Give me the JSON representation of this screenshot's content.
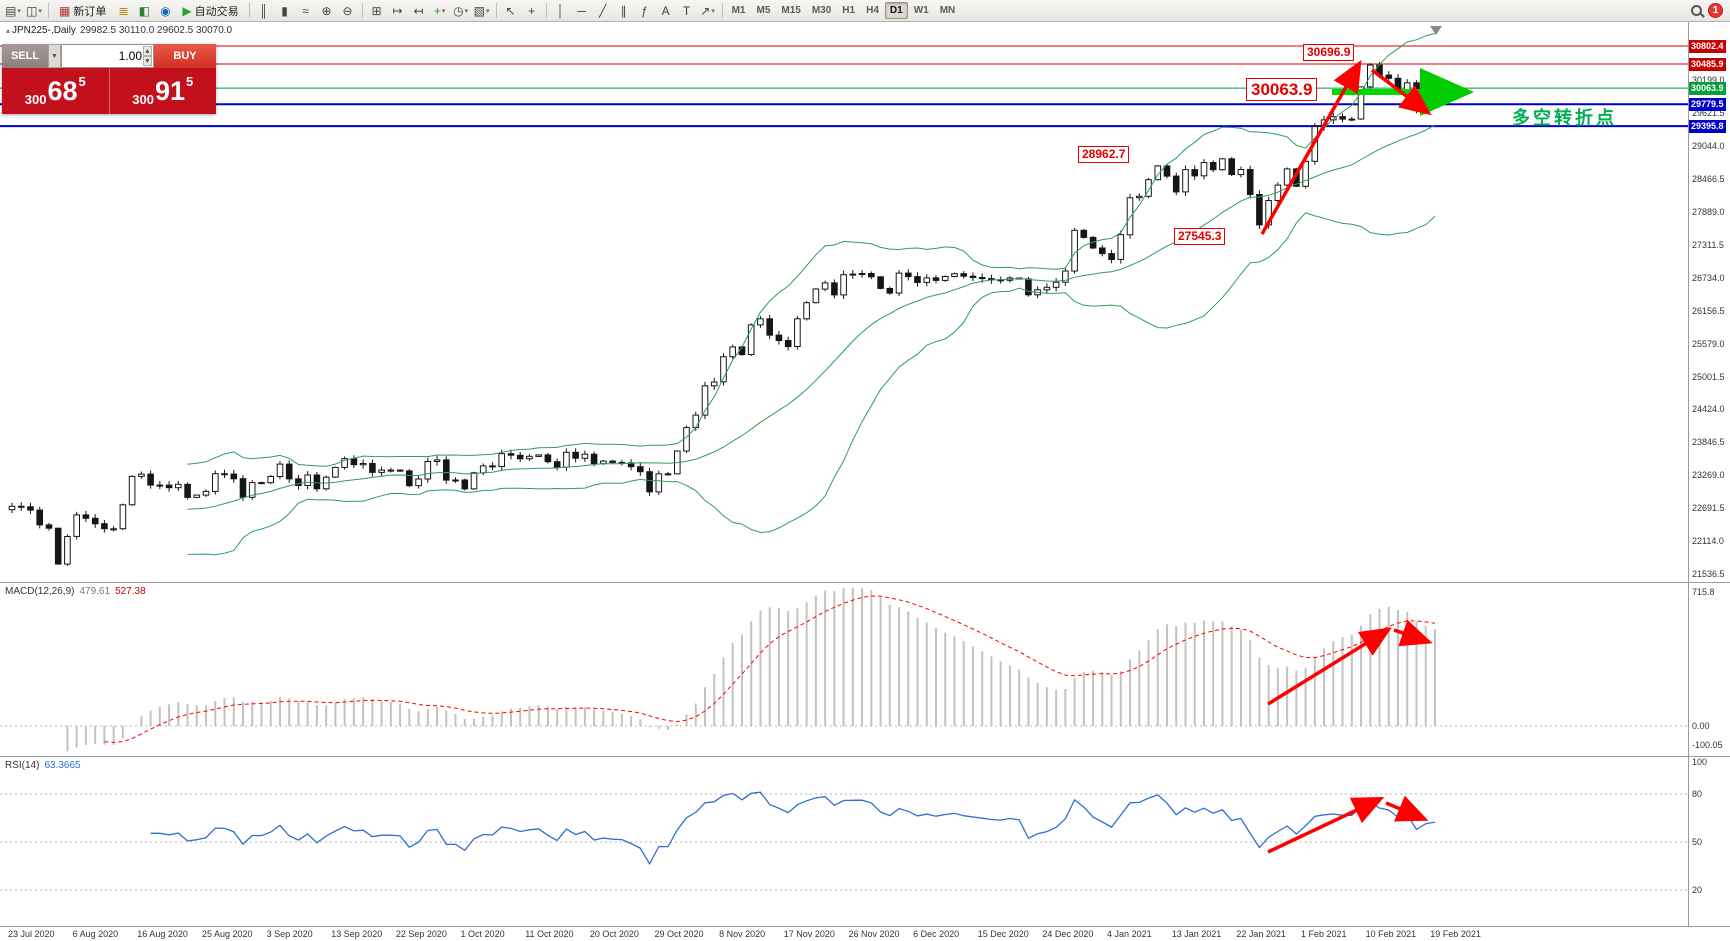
{
  "toolbar": {
    "items": [
      {
        "type": "icon",
        "name": "new-chart",
        "glyph": "▤",
        "caret": true
      },
      {
        "type": "icon",
        "name": "profiles",
        "glyph": "◫",
        "caret": true
      },
      {
        "type": "sep"
      },
      {
        "type": "icon",
        "name": "new-order",
        "glyph": "▦",
        "label": "新订单",
        "color": "#b03030"
      },
      {
        "type": "icon",
        "name": "market-watch",
        "glyph": "≣",
        "color": "#b8860b"
      },
      {
        "type": "icon",
        "name": "data-window",
        "glyph": "◧",
        "color": "#2e7d32"
      },
      {
        "type": "icon",
        "name": "navigator",
        "glyph": "◉",
        "color": "#1565c0"
      },
      {
        "type": "icon",
        "name": "auto-trading",
        "glyph": "▶",
        "label": "自动交易",
        "color": "#2fa12f"
      },
      {
        "type": "sep"
      },
      {
        "type": "icon",
        "name": "bar-chart",
        "glyph": "║"
      },
      {
        "type": "icon",
        "name": "candlestick-chart",
        "glyph": "▮"
      },
      {
        "type": "icon",
        "name": "line-chart",
        "glyph": "≈"
      },
      {
        "type": "icon",
        "name": "zoom-in",
        "glyph": "⊕"
      },
      {
        "type": "icon",
        "name": "zoom-out",
        "glyph": "⊖"
      },
      {
        "type": "sep"
      },
      {
        "type": "icon",
        "name": "tile-windows",
        "glyph": "⊞"
      },
      {
        "type": "icon",
        "name": "auto-scroll",
        "glyph": "↦"
      },
      {
        "type": "icon",
        "name": "chart-shift",
        "glyph": "↤"
      },
      {
        "type": "icon",
        "name": "indicators",
        "glyph": "+",
        "color": "#1d9e1d",
        "caret": true
      },
      {
        "type": "icon",
        "name": "periods",
        "glyph": "◷",
        "caret": true
      },
      {
        "type": "icon",
        "name": "templates",
        "glyph": "▧",
        "caret": true
      },
      {
        "type": "sep"
      },
      {
        "type": "icon",
        "name": "cursor",
        "glyph": "↖"
      },
      {
        "type": "icon",
        "name": "crosshair",
        "glyph": "+"
      },
      {
        "type": "sep"
      },
      {
        "type": "icon",
        "name": "vertical-line",
        "glyph": "│"
      },
      {
        "type": "icon",
        "name": "horizontal-line",
        "glyph": "─"
      },
      {
        "type": "icon",
        "name": "trendline",
        "glyph": "╱"
      },
      {
        "type": "icon",
        "name": "equidistant-channel",
        "glyph": "∥"
      },
      {
        "type": "icon",
        "name": "fibonacci",
        "glyph": "ƒ"
      },
      {
        "type": "icon",
        "name": "text",
        "glyph": "A"
      },
      {
        "type": "icon",
        "name": "text-label",
        "glyph": "T"
      },
      {
        "type": "icon",
        "name": "arrows",
        "glyph": "↗",
        "caret": true
      },
      {
        "type": "sep"
      }
    ],
    "timeframes": [
      {
        "label": "M1"
      },
      {
        "label": "M5"
      },
      {
        "label": "M15"
      },
      {
        "label": "M30"
      },
      {
        "label": "H1"
      },
      {
        "label": "H4"
      },
      {
        "label": "D1",
        "active": true
      },
      {
        "label": "W1"
      },
      {
        "label": "MN"
      }
    ],
    "notification_count": "1"
  },
  "chart_header": {
    "symbol": "JPN225-,Daily",
    "ohlc": "29982.5 30110.0 29602.5 30070.0"
  },
  "trade_panel": {
    "sell_label": "SELL",
    "buy_label": "BUY",
    "volume": "1.00",
    "bid": "30068.5",
    "ask": "30091.5"
  },
  "price_axis": {
    "tags": [
      {
        "text": "30802.4",
        "price": 30802.4,
        "bg": "#c40000"
      },
      {
        "text": "30485.9",
        "price": 30485.9,
        "bg": "#c40000"
      },
      {
        "text": "30063.9",
        "price": 30063.9,
        "bg": "#089e3c"
      },
      {
        "text": "29779.5",
        "price": 29779.5,
        "bg": "#0000c8"
      },
      {
        "text": "29395.8",
        "price": 29395.8,
        "bg": "#0000c8"
      }
    ],
    "ticks": [
      "30199.0",
      "29621.5",
      "29044.0",
      "28466.5",
      "27889.0",
      "27311.5",
      "26734.0",
      "26156.5",
      "25579.0",
      "25001.5",
      "24424.0",
      "23846.5",
      "23269.0",
      "22691.5",
      "22114.0",
      "21536.5"
    ]
  },
  "main_chart": {
    "levels": [
      {
        "price": 30802.4,
        "color": "#d40000",
        "w": 1
      },
      {
        "price": 30485.9,
        "color": "#d40000",
        "w": 1
      },
      {
        "price": 30063.9,
        "color": "#009e3c",
        "w": 1
      },
      {
        "price": 29779.5,
        "color": "#0000c8",
        "w": 2
      },
      {
        "price": 29395.8,
        "color": "#0000c8",
        "w": 2
      }
    ],
    "support_line_color": "#00d800",
    "annotations": [
      {
        "text": "30696.9",
        "big": false
      },
      {
        "text": "30063.9",
        "big": true
      },
      {
        "text": "28962.7",
        "big": false
      },
      {
        "text": "27545.3",
        "big": false
      }
    ],
    "note_text": "多空转折点"
  },
  "macd": {
    "label": "MACD(12,26,9)",
    "value1": "479.61",
    "value2": "527.38",
    "axis": [
      "715.8",
      "0.00",
      "-100.05"
    ],
    "axis_vals": [
      715.8,
      0,
      -100.05
    ]
  },
  "rsi": {
    "label": "RSI(14)",
    "value": "63.3665",
    "axis": [
      "100",
      "80",
      "50",
      "20"
    ],
    "axis_vals": [
      100,
      80,
      50,
      20
    ],
    "levels": [
      80,
      50,
      20
    ]
  },
  "dates": [
    "23 Jul 2020",
    "6 Aug 2020",
    "16 Aug 2020",
    "25 Aug 2020",
    "3 Sep 2020",
    "13 Sep 2020",
    "22 Sep 2020",
    "1 Oct 2020",
    "11 Oct 2020",
    "20 Oct 2020",
    "29 Oct 2020",
    "8 Nov 2020",
    "17 Nov 2020",
    "26 Nov 2020",
    "6 Dec 2020",
    "15 Dec 2020",
    "24 Dec 2020",
    "4 Jan 2021",
    "13 Jan 2021",
    "22 Jan 2021",
    "1 Feb 2021",
    "10 Feb 2021",
    "19 Feb 2021"
  ],
  "chart_data": {
    "type": "candlestick",
    "symbol": "JPN225",
    "timeframe": "Daily",
    "last_candle": {
      "open": 29982.5,
      "high": 30110.0,
      "low": 29602.5,
      "close": 30070.0
    },
    "price_range": [
      21536.5,
      30802.4
    ],
    "closes": [
      22725,
      22715,
      22657,
      22397,
      22339,
      21710,
      22195,
      22573,
      22514,
      22418,
      22330,
      22330,
      22750,
      23249,
      23289,
      23096,
      23097,
      23051,
      23110,
      22880,
      22920,
      22985,
      23296,
      23290,
      23208,
      22882,
      23140,
      23138,
      23247,
      23465,
      23205,
      23090,
      23274,
      23032,
      23235,
      23406,
      23559,
      23454,
      23475,
      23319,
      23360,
      23360,
      23346,
      23087,
      23204,
      23511,
      23539,
      23185,
      23185,
      23029,
      23312,
      23433,
      23422,
      23647,
      23620,
      23559,
      23601,
      23627,
      23507,
      23411,
      23671,
      23567,
      23639,
      23474,
      23517,
      23494,
      23486,
      23419,
      23332,
      22977,
      23295,
      23295,
      23695,
      24105,
      24325,
      24839,
      24906,
      25349,
      25521,
      25386,
      25907,
      26014,
      25728,
      25634,
      25527,
      26014,
      26297,
      26537,
      26645,
      26434,
      26788,
      26800,
      26809,
      26751,
      26547,
      26467,
      26817,
      26756,
      26653,
      26732,
      26688,
      26757,
      26806,
      26763,
      26740,
      26720,
      26700,
      26690,
      26730,
      26714,
      26436,
      26524,
      26568,
      26657,
      26854,
      27568,
      27444,
      27258,
      27159,
      27056,
      27490,
      28139,
      28164,
      28456,
      28698,
      28519,
      28242,
      28633,
      28523,
      28757,
      28631,
      28822,
      28546,
      28635,
      28197,
      27663,
      28091,
      28362,
      28646,
      28341,
      28779,
      29388,
      29505,
      29563,
      29520,
      29520,
      30084,
      30467,
      30292,
      30236,
      30017,
      30156,
      29671,
      29982,
      30070
    ],
    "indicators": {
      "bollinger": {
        "period": 20,
        "deviation": 2
      },
      "macd": {
        "fast": 12,
        "slow": 26,
        "signal": 9
      },
      "rsi": {
        "period": 14
      }
    }
  }
}
